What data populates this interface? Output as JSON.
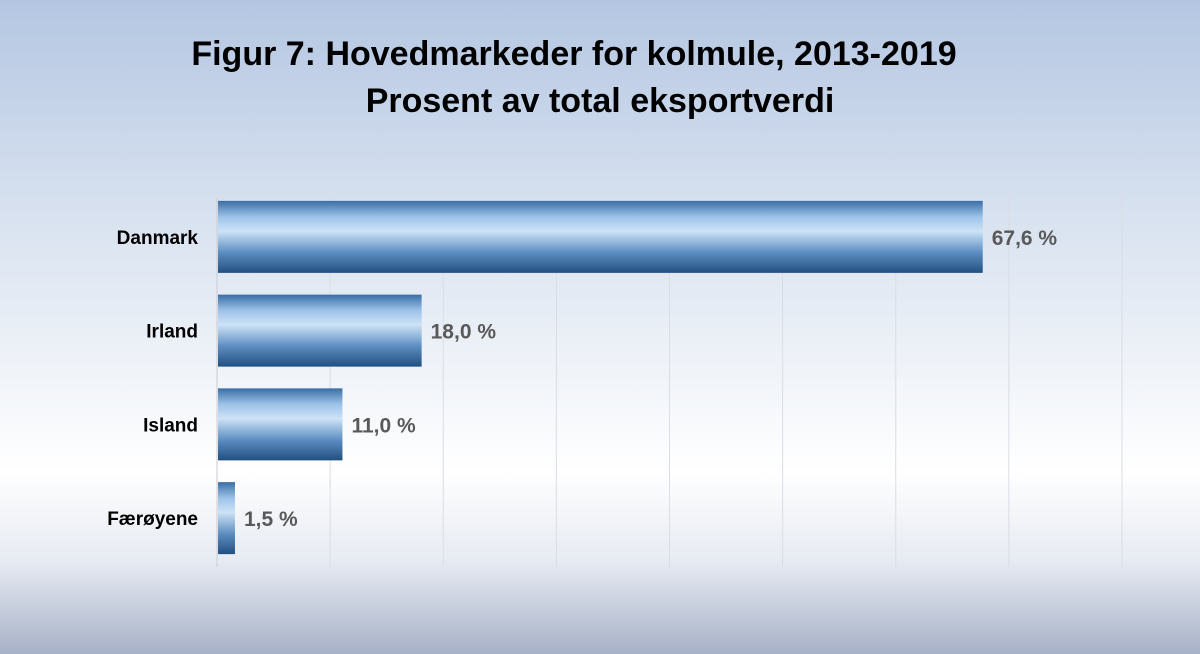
{
  "header": {
    "title": "Figur 7:  Hovedmarkeder for kolmule, 2013-2019",
    "subtitle": "Prosent av total eksportverdi"
  },
  "chart_data": {
    "type": "bar",
    "orientation": "horizontal",
    "title": "Figur 7:  Hovedmarkeder for kolmule, 2013-2019",
    "subtitle": "Prosent av total eksportverdi",
    "categories": [
      "Danmark",
      "Irland",
      "Island",
      "Færøyene"
    ],
    "values": [
      67.6,
      18.0,
      11.0,
      1.5
    ],
    "value_labels": [
      "67,6 %",
      "18,0 %",
      "11,0 %",
      "1,5 %"
    ],
    "xlim": [
      0,
      80
    ],
    "grid": true,
    "legend": "none",
    "colors": {
      "bar_dark": "#2a5a8e",
      "bar_light": "#c6ddf3",
      "value_text": "#595959",
      "grid": "#d9dde5"
    }
  }
}
